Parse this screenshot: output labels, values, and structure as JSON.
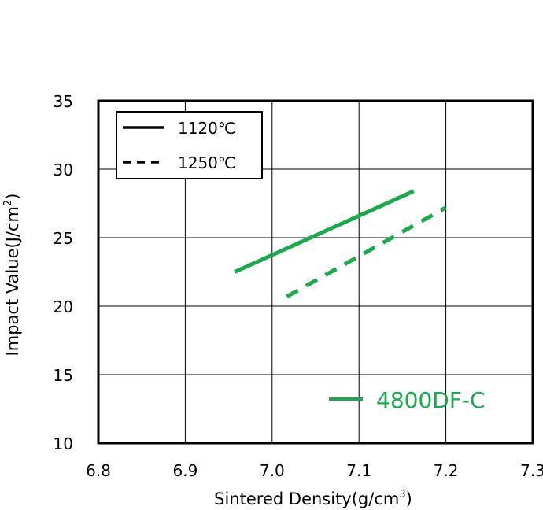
{
  "chart_data": {
    "type": "line",
    "xlabel": "Sintered Density(g/cm",
    "xlabel_sup": "3",
    "xlabel_close": ")",
    "ylabel": "Impact Value(J/cm",
    "ylabel_sup": "2",
    "ylabel_close": ")",
    "xlim": [
      6.8,
      7.3
    ],
    "ylim": [
      10,
      35
    ],
    "x_ticks": [
      "6.8",
      "6.9",
      "7.0",
      "7.1",
      "7.2",
      "7.3"
    ],
    "y_ticks": [
      "10",
      "15",
      "20",
      "25",
      "30",
      "35"
    ],
    "grid": true,
    "legend_position": "top-left",
    "series": [
      {
        "name": "1120℃",
        "style": "solid",
        "color": "#1aaa4e",
        "x": [
          6.957,
          7.163
        ],
        "y": [
          22.5,
          28.4
        ]
      },
      {
        "name": "1250℃",
        "style": "dashed",
        "color": "#1aaa4e",
        "x": [
          7.017,
          7.2
        ],
        "y": [
          20.7,
          27.2
        ]
      }
    ],
    "legend_line_color": "#000000",
    "annotation": {
      "text": "4800DF-C",
      "color": "#1aaa4e"
    }
  }
}
